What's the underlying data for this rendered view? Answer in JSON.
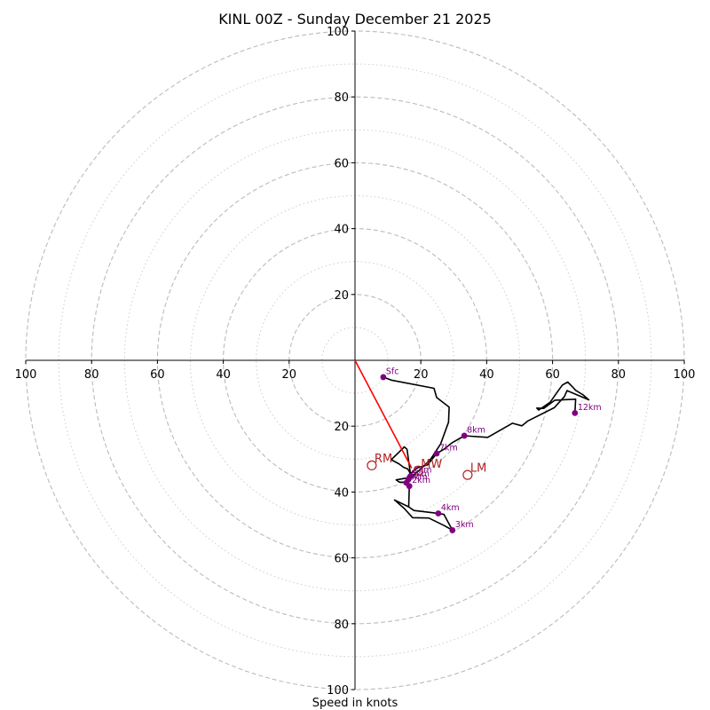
{
  "chart_data": {
    "type": "hodograph",
    "title": "KINL 00Z - Sunday December 21 2025",
    "xlabel": "Speed in knots",
    "range": 100,
    "ring_major": [
      20,
      40,
      60,
      80,
      100
    ],
    "ring_minor": [
      10,
      30,
      50,
      70,
      90
    ],
    "x_ticks": [
      {
        "v": -100,
        "label": "100"
      },
      {
        "v": -80,
        "label": "80"
      },
      {
        "v": -60,
        "label": "60"
      },
      {
        "v": -40,
        "label": "40"
      },
      {
        "v": -20,
        "label": "20"
      },
      {
        "v": 20,
        "label": "20"
      },
      {
        "v": 40,
        "label": "40"
      },
      {
        "v": 60,
        "label": "60"
      },
      {
        "v": 80,
        "label": "80"
      },
      {
        "v": 100,
        "label": "100"
      }
    ],
    "y_ticks": [
      {
        "v": 100,
        "label": "100"
      },
      {
        "v": 80,
        "label": "80"
      },
      {
        "v": 60,
        "label": "60"
      },
      {
        "v": 40,
        "label": "40"
      },
      {
        "v": 20,
        "label": "20"
      },
      {
        "v": -20,
        "label": "20"
      },
      {
        "v": -40,
        "label": "40"
      },
      {
        "v": -60,
        "label": "60"
      },
      {
        "v": -80,
        "label": "80"
      },
      {
        "v": -100,
        "label": "100"
      }
    ],
    "hodograph_line": {
      "color": "#000000",
      "points": [
        [
          8.6,
          -5.1
        ],
        [
          11,
          -6
        ],
        [
          24,
          -8.5
        ],
        [
          24.8,
          -11.3
        ],
        [
          28.6,
          -14.2
        ],
        [
          28.4,
          -18.8
        ],
        [
          26,
          -25.4
        ],
        [
          23,
          -30
        ],
        [
          20,
          -33
        ],
        [
          17,
          -35.5
        ],
        [
          15.5,
          -37
        ],
        [
          13.5,
          -37
        ],
        [
          12.5,
          -36.3
        ],
        [
          16,
          -35.7
        ],
        [
          17,
          -34.8
        ],
        [
          16.5,
          -33.8
        ],
        [
          16,
          -33
        ],
        [
          14.8,
          -32.5
        ],
        [
          13.3,
          -31.4
        ],
        [
          11,
          -30.2
        ],
        [
          15,
          -26.3
        ],
        [
          15.8,
          -27
        ],
        [
          16.5,
          -32
        ],
        [
          16.9,
          -35.1
        ],
        [
          16.2,
          -36.2
        ],
        [
          15.6,
          -37.2
        ],
        [
          16.5,
          -38.2
        ],
        [
          16.3,
          -44.5
        ],
        [
          12,
          -42.4
        ],
        [
          15,
          -45
        ],
        [
          17.5,
          -47.8
        ],
        [
          22.4,
          -47.9
        ],
        [
          27.1,
          -50.2
        ],
        [
          29.6,
          -51.6
        ],
        [
          27,
          -46.8
        ],
        [
          25.3,
          -46.5
        ],
        [
          23.8,
          -46.3
        ],
        [
          17.9,
          -45.6
        ],
        [
          16.3,
          -44.5
        ],
        [
          16.5,
          -38.2
        ],
        [
          15.8,
          -36.2
        ],
        [
          16,
          -35.2
        ],
        [
          16.5,
          -34.8
        ],
        [
          17,
          -34.3
        ],
        [
          18,
          -33.3
        ],
        [
          19.3,
          -32.5
        ],
        [
          22,
          -31.8
        ],
        [
          24.8,
          -28.3
        ],
        [
          27,
          -27
        ],
        [
          29.4,
          -25.1
        ],
        [
          33.2,
          -22.9
        ],
        [
          40.3,
          -23.4
        ],
        [
          47.8,
          -19.1
        ],
        [
          50.7,
          -19.9
        ],
        [
          52.5,
          -18.4
        ],
        [
          60.5,
          -14.4
        ],
        [
          63.6,
          -11
        ],
        [
          64.4,
          -9.2
        ],
        [
          71,
          -12
        ],
        [
          69.3,
          -10.5
        ],
        [
          67,
          -9.1
        ],
        [
          66.2,
          -8.2
        ],
        [
          64.6,
          -6.6
        ],
        [
          63,
          -7.5
        ],
        [
          61.8,
          -9.1
        ],
        [
          59.3,
          -12.7
        ],
        [
          55.8,
          -15.1
        ],
        [
          55.2,
          -14.5
        ],
        [
          57.3,
          -14.6
        ],
        [
          60.7,
          -12.1
        ],
        [
          67,
          -11.8
        ],
        [
          66.8,
          -16
        ]
      ]
    },
    "height_markers": [
      {
        "label": "Sfc",
        "u": 8.6,
        "v": -5.1
      },
      {
        "label": "3km",
        "u": 29.6,
        "v": -51.6
      },
      {
        "label": "4km",
        "u": 25.3,
        "v": -46.5
      },
      {
        "label": "7km",
        "u": 24.8,
        "v": -28.3
      },
      {
        "label": "8km",
        "u": 33.2,
        "v": -22.9
      },
      {
        "label": "12km",
        "u": 66.8,
        "v": -16
      },
      {
        "label": "1km",
        "u": 16.9,
        "v": -35.1
      },
      {
        "label": "2km",
        "u": 16.5,
        "v": -38.2
      },
      {
        "label": "5km",
        "u": 16.2,
        "v": -36.2
      },
      {
        "label": "6km",
        "u": 15.6,
        "v": -37.2
      }
    ],
    "marker_color": "#800080",
    "storm_motion": [
      {
        "label": "RM",
        "u": 5.1,
        "v": -31.9
      },
      {
        "label": "LM",
        "u": 34.2,
        "v": -34.8
      },
      {
        "label": "MW",
        "u": 19.2,
        "v": -33.5
      }
    ],
    "storm_color": "#b22222",
    "shear_vector": {
      "color": "#ff0000",
      "from": [
        0,
        0
      ],
      "to": [
        17.2,
        -32.7
      ]
    }
  }
}
